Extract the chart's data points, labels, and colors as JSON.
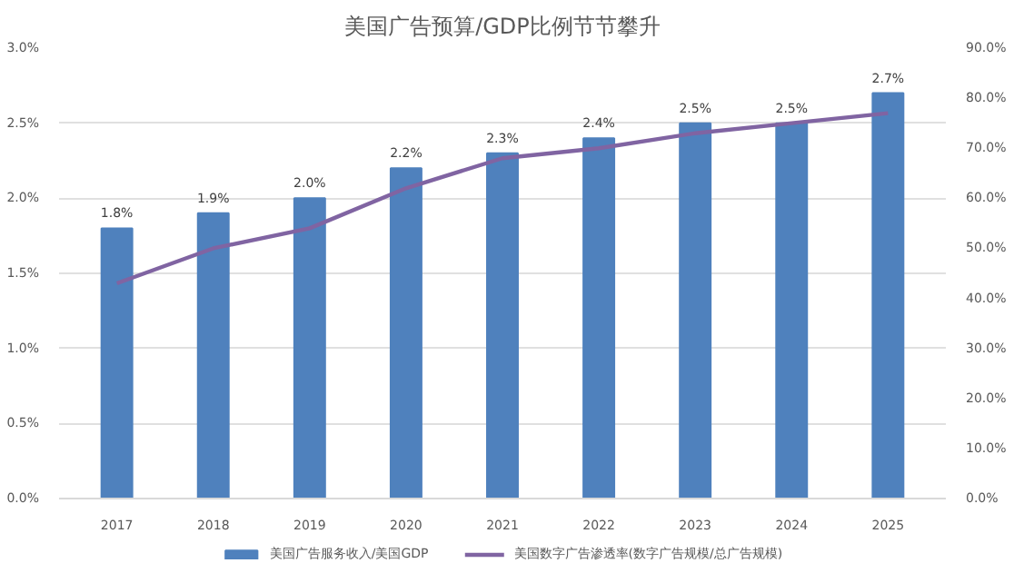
{
  "chart_data": {
    "type": "bar",
    "title": "美国广告预算/GDP比例节节攀升",
    "categories": [
      "2017",
      "2018",
      "2019",
      "2020",
      "2021",
      "2022",
      "2023",
      "2024",
      "2025"
    ],
    "series": [
      {
        "name": "美国广告服务收入/美国GDP",
        "color": "#4f81bd",
        "values": [
          1.8,
          1.9,
          2.0,
          2.2,
          2.3,
          2.4,
          2.5,
          2.5,
          2.7
        ],
        "value_labels": [
          "1.8%",
          "1.9%",
          "2.0%",
          "2.2%",
          "2.3%",
          "2.4%",
          "2.5%",
          "2.5%",
          "2.7%"
        ]
      },
      {
        "name": "美国数字广告渗透率(数字广告规模/总广告规模)",
        "type": "line",
        "axis": "y2",
        "color": "#8064a2",
        "values": [
          43,
          50,
          54,
          62,
          68,
          70,
          73,
          75,
          77
        ]
      }
    ],
    "ylim": [
      0,
      3
    ],
    "yticks": [
      {
        "value": 0,
        "label": "0.0%"
      },
      {
        "value": 0.5,
        "label": "0.5%"
      },
      {
        "value": 1,
        "label": "1.0%"
      },
      {
        "value": 1.5,
        "label": "1.5%"
      },
      {
        "value": 2,
        "label": "2.0%"
      },
      {
        "value": 2.5,
        "label": "2.5%"
      },
      {
        "value": 3,
        "label": "3.0%"
      }
    ],
    "y2lim": [
      0,
      90
    ],
    "y2ticks": [
      {
        "value": 0,
        "label": "0.0%"
      },
      {
        "value": 10,
        "label": "10.0%"
      },
      {
        "value": 20,
        "label": "20.0%"
      },
      {
        "value": 30,
        "label": "30.0%"
      },
      {
        "value": 40,
        "label": "40.0%"
      },
      {
        "value": 50,
        "label": "50.0%"
      },
      {
        "value": 60,
        "label": "60.0%"
      },
      {
        "value": 70,
        "label": "70.0%"
      },
      {
        "value": 80,
        "label": "80.0%"
      },
      {
        "value": 90,
        "label": "90.0%"
      }
    ],
    "grid": "y",
    "legend": "bottom",
    "marker": "none",
    "line_style": "solid"
  }
}
